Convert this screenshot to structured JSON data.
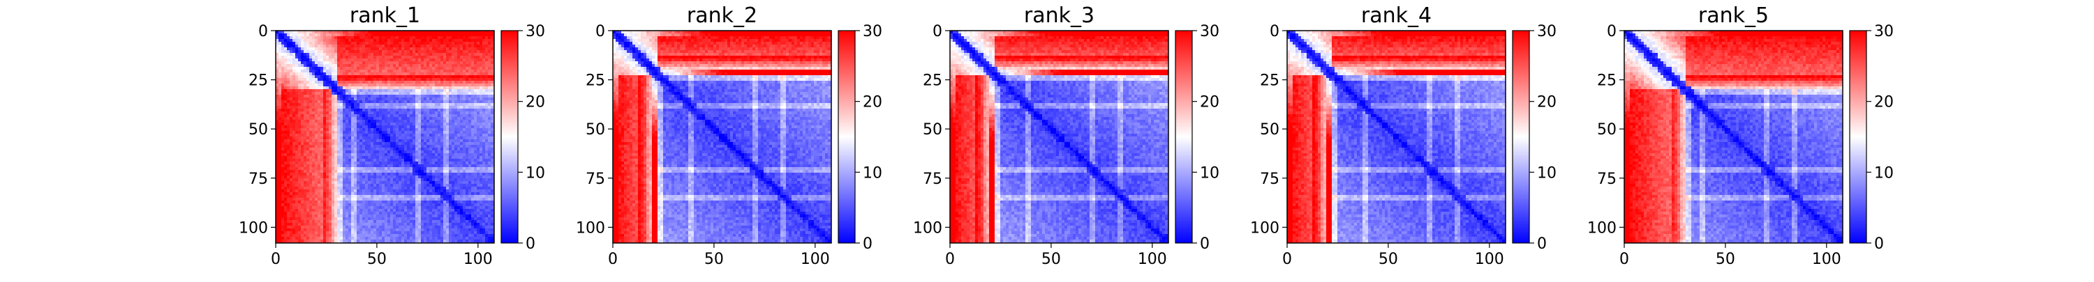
{
  "chart_data": [
    {
      "type": "heatmap",
      "title": "rank_1",
      "x_ticks": [
        "0",
        "50",
        "100"
      ],
      "y_ticks": [
        "0",
        "25",
        "50",
        "75",
        "100"
      ],
      "xlim": [
        0,
        108
      ],
      "ylim": [
        108,
        0
      ],
      "colorbar": {
        "ticks": [
          "0",
          "10",
          "20",
          "30"
        ],
        "range": [
          0,
          30
        ],
        "colormap": "bwr"
      },
      "structure": {
        "n_residues": 108,
        "low_region": [
          30,
          108
        ],
        "stripe_rows": [
          38,
          70,
          84
        ],
        "left_band_end": 30
      }
    },
    {
      "type": "heatmap",
      "title": "rank_2",
      "x_ticks": [
        "0",
        "50",
        "100"
      ],
      "y_ticks": [
        "0",
        "25",
        "50",
        "75",
        "100"
      ],
      "xlim": [
        0,
        108
      ],
      "ylim": [
        108,
        0
      ],
      "colorbar": {
        "ticks": [
          "0",
          "10",
          "20",
          "30"
        ],
        "range": [
          0,
          30
        ],
        "colormap": "bwr"
      },
      "structure": {
        "n_residues": 108,
        "low_region": [
          22,
          108
        ],
        "stripe_rows": [
          38,
          70,
          84
        ],
        "left_band_end": 20
      }
    },
    {
      "type": "heatmap",
      "title": "rank_3",
      "x_ticks": [
        "0",
        "50",
        "100"
      ],
      "y_ticks": [
        "0",
        "25",
        "50",
        "75",
        "100"
      ],
      "xlim": [
        0,
        108
      ],
      "ylim": [
        108,
        0
      ],
      "colorbar": {
        "ticks": [
          "0",
          "10",
          "20",
          "30"
        ],
        "range": [
          0,
          30
        ],
        "colormap": "bwr"
      },
      "structure": {
        "n_residues": 108,
        "low_region": [
          22,
          108
        ],
        "stripe_rows": [
          38,
          70,
          84
        ],
        "left_band_end": 20
      }
    },
    {
      "type": "heatmap",
      "title": "rank_4",
      "x_ticks": [
        "0",
        "50",
        "100"
      ],
      "y_ticks": [
        "0",
        "25",
        "50",
        "75",
        "100"
      ],
      "xlim": [
        0,
        108
      ],
      "ylim": [
        108,
        0
      ],
      "colorbar": {
        "ticks": [
          "0",
          "10",
          "20",
          "30"
        ],
        "range": [
          0,
          30
        ],
        "colormap": "bwr"
      },
      "structure": {
        "n_residues": 108,
        "low_region": [
          22,
          108
        ],
        "stripe_rows": [
          38,
          70,
          84
        ],
        "left_band_end": 20
      }
    },
    {
      "type": "heatmap",
      "title": "rank_5",
      "x_ticks": [
        "0",
        "50",
        "100"
      ],
      "y_ticks": [
        "0",
        "25",
        "50",
        "75",
        "100"
      ],
      "xlim": [
        0,
        108
      ],
      "ylim": [
        108,
        0
      ],
      "colorbar": {
        "ticks": [
          "0",
          "10",
          "20",
          "30"
        ],
        "range": [
          0,
          30
        ],
        "colormap": "bwr"
      },
      "structure": {
        "n_residues": 108,
        "low_region": [
          30,
          108
        ],
        "stripe_rows": [
          38,
          70,
          84
        ],
        "left_band_end": 30
      }
    }
  ]
}
